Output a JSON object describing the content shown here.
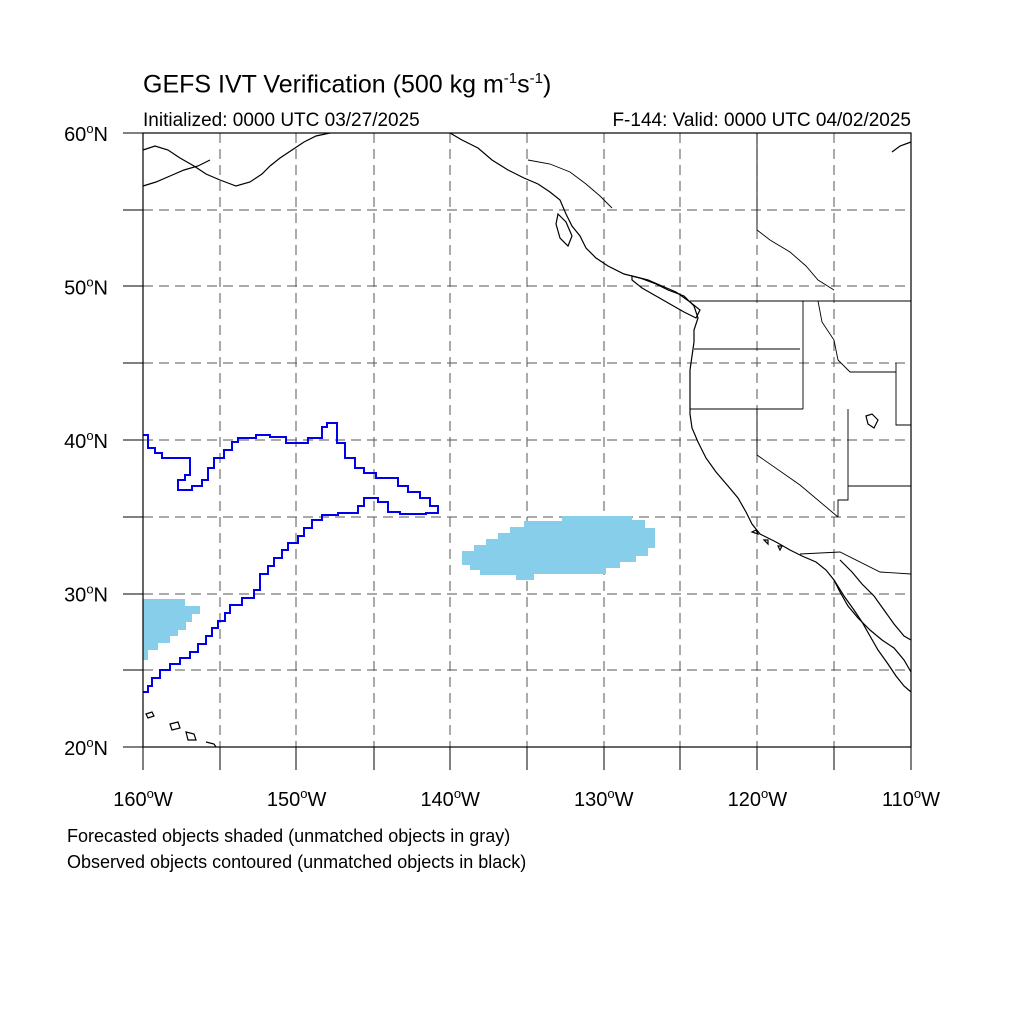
{
  "map": {
    "title_main": "GEFS IVT Verification (500 kg m",
    "title_sup1": "-1",
    "title_mid": "s",
    "title_sup2": "-1",
    "title_end": ")",
    "init_label": "Initialized: 0000 UTC 03/27/2025",
    "valid_label": "F-144: Valid: 0000 UTC 04/02/2025",
    "caption_line1": "Forecasted objects shaded (unmatched objects in gray)",
    "caption_line2": "Observed objects contoured (unmatched objects in black)",
    "lat_labels": [
      {
        "deg": "60",
        "dir": "N",
        "lat": 60
      },
      {
        "deg": "50",
        "dir": "N",
        "lat": 50
      },
      {
        "deg": "40",
        "dir": "N",
        "lat": 40
      },
      {
        "deg": "30",
        "dir": "N",
        "lat": 30
      },
      {
        "deg": "20",
        "dir": "N",
        "lat": 20
      }
    ],
    "lon_labels": [
      {
        "deg": "160",
        "dir": "W",
        "lon": -160
      },
      {
        "deg": "150",
        "dir": "W",
        "lon": -150
      },
      {
        "deg": "140",
        "dir": "W",
        "lon": -140
      },
      {
        "deg": "130",
        "dir": "W",
        "lon": -130
      },
      {
        "deg": "120",
        "dir": "W",
        "lon": -120
      },
      {
        "deg": "110",
        "dir": "W",
        "lon": -110
      }
    ],
    "extent": {
      "lon_min": -160,
      "lon_max": -110,
      "lat_min": 20,
      "lat_max": 60
    },
    "colors": {
      "forecast_fill": "#87ceeb",
      "observed_contour": "#0000ee",
      "coastline": "#000000",
      "grid": "#555555"
    }
  }
}
